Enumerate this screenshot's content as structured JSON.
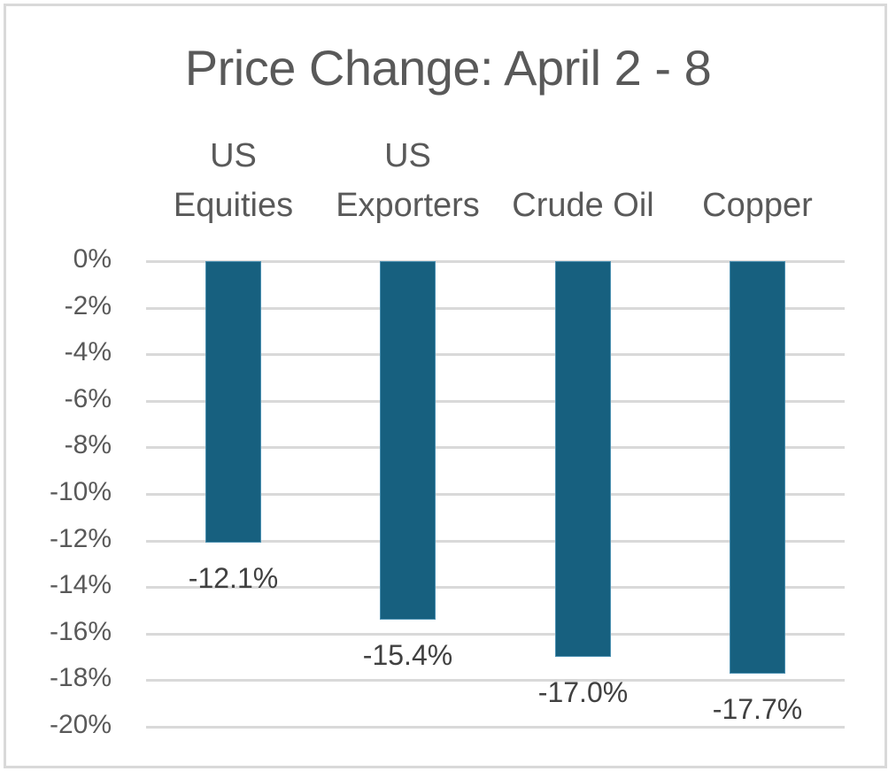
{
  "chart_data": {
    "type": "bar",
    "title": "Price Change: April 2 - 8",
    "categories": [
      "US Equities",
      "US Exporters",
      "Crude Oil",
      "Copper"
    ],
    "category_label_lines": [
      [
        "US",
        "Equities"
      ],
      [
        "US",
        "Exporters"
      ],
      [
        "",
        "Crude Oil"
      ],
      [
        "",
        "Copper"
      ]
    ],
    "values": [
      -12.1,
      -15.4,
      -17.0,
      -17.7
    ],
    "data_labels": [
      "-12.1%",
      "-15.4%",
      "-17.0%",
      "-17.7%"
    ],
    "xlabel": "",
    "ylabel": "",
    "ylim": [
      -20,
      0
    ],
    "yticks": [
      0,
      -2,
      -4,
      -6,
      -8,
      -10,
      -12,
      -14,
      -16,
      -18,
      -20
    ],
    "ytick_labels": [
      "0%",
      "-2%",
      "-4%",
      "-6%",
      "-8%",
      "-10%",
      "-12%",
      "-14%",
      "-16%",
      "-18%",
      "-20%"
    ],
    "grid": true,
    "legend": "none",
    "category_axis_position": "top",
    "bar_color": "#17607f"
  }
}
